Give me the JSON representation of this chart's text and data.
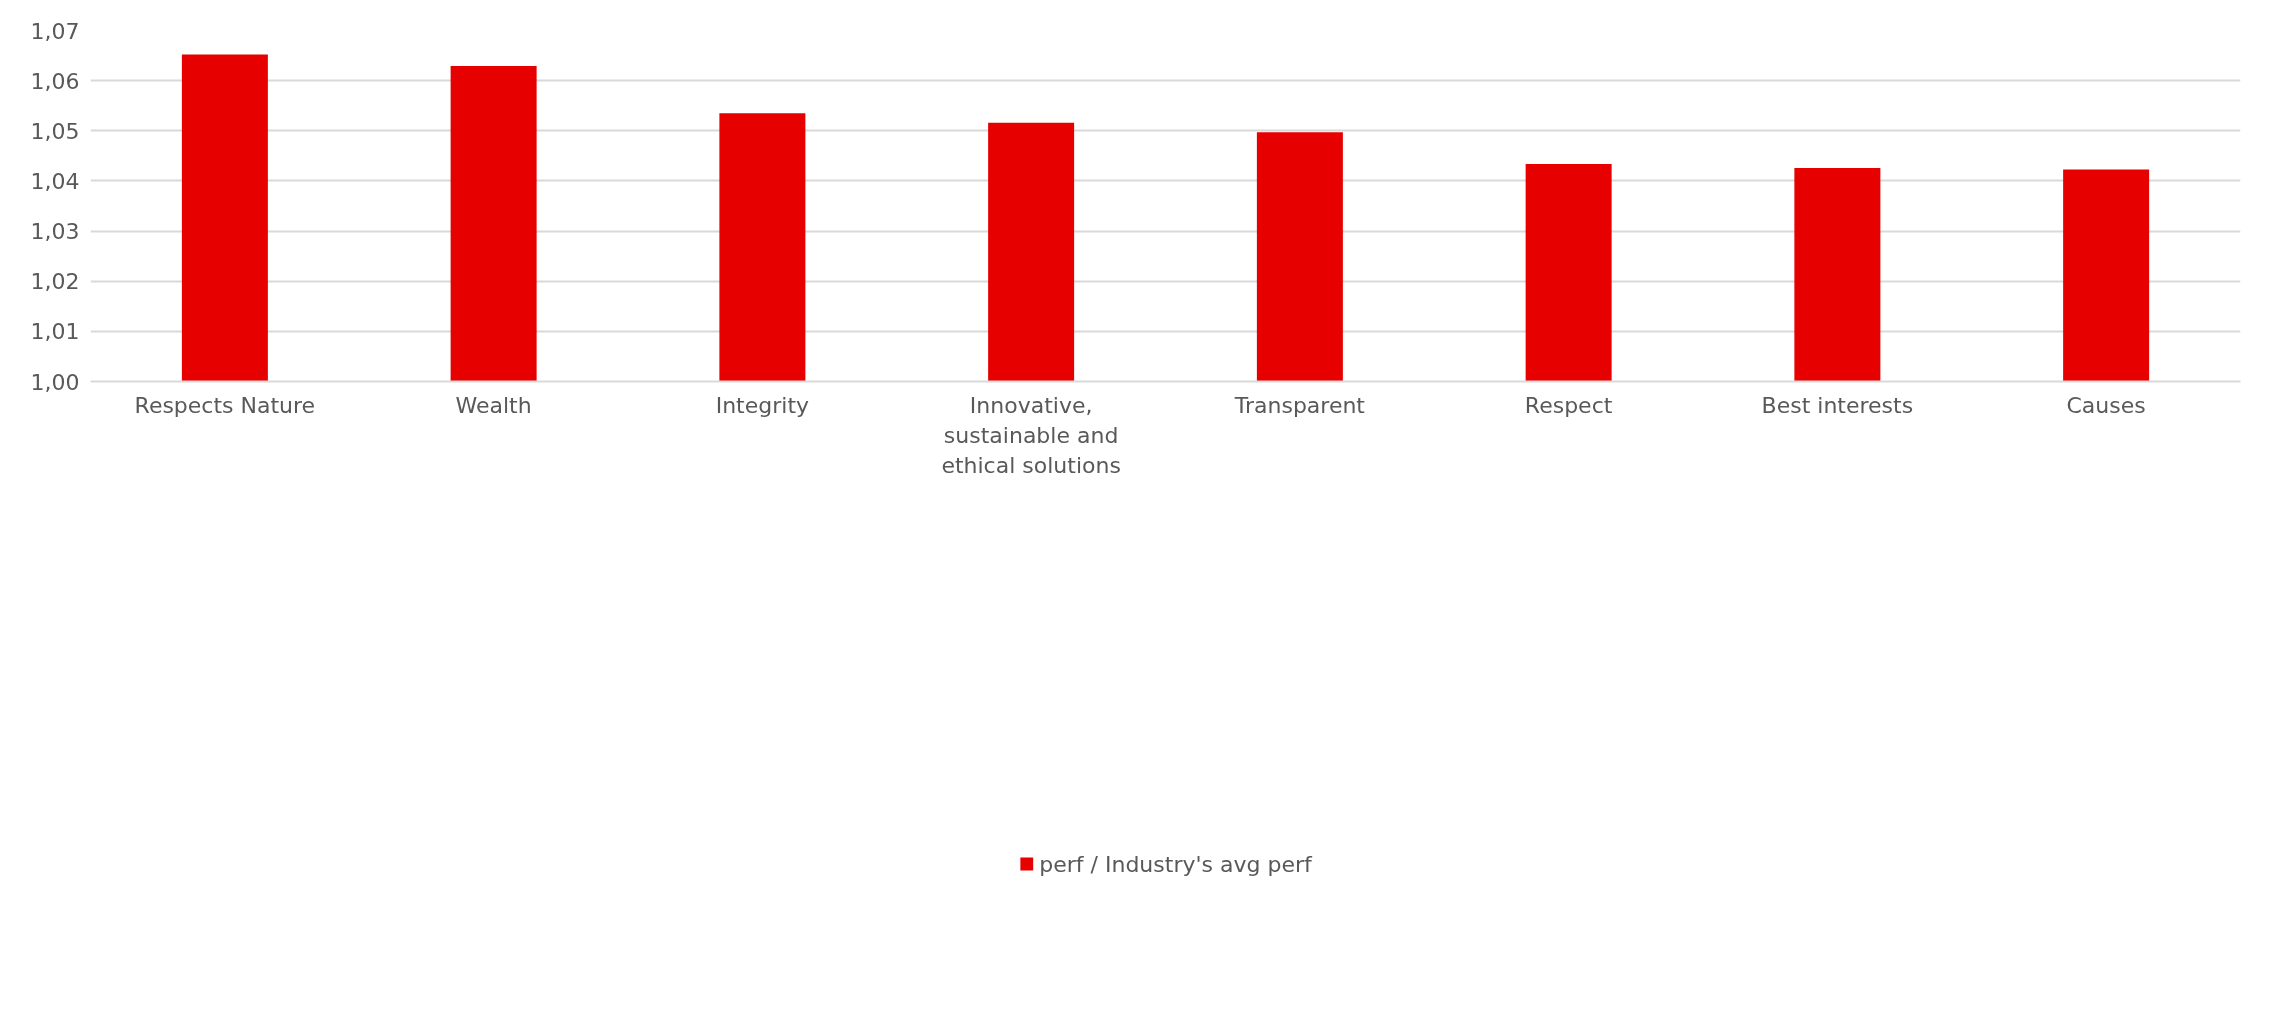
{
  "chart_data": {
    "type": "bar",
    "categories": [
      "Respects Nature",
      "Wealth",
      "Integrity",
      "Innovative, sustainable and ethical solutions",
      "Transparent",
      "Respect",
      "Best interests",
      "Causes"
    ],
    "series": [
      {
        "name": "perf / Industry's avg perf",
        "color": "#e60000",
        "values": [
          1.0652,
          1.0629,
          1.0535,
          1.0516,
          1.0497,
          1.0434,
          1.0426,
          1.0423
        ]
      }
    ],
    "ylim": [
      1.0,
      1.07
    ],
    "yticks": [
      {
        "value": 1.0,
        "label": "1,00"
      },
      {
        "value": 1.01,
        "label": "1,01"
      },
      {
        "value": 1.02,
        "label": "1,02"
      },
      {
        "value": 1.03,
        "label": "1,03"
      },
      {
        "value": 1.04,
        "label": "1,04"
      },
      {
        "value": 1.05,
        "label": "1,05"
      },
      {
        "value": 1.06,
        "label": "1,06"
      },
      {
        "value": 1.07,
        "label": "1,07"
      }
    ],
    "grid": "y",
    "legend": "bottom"
  }
}
